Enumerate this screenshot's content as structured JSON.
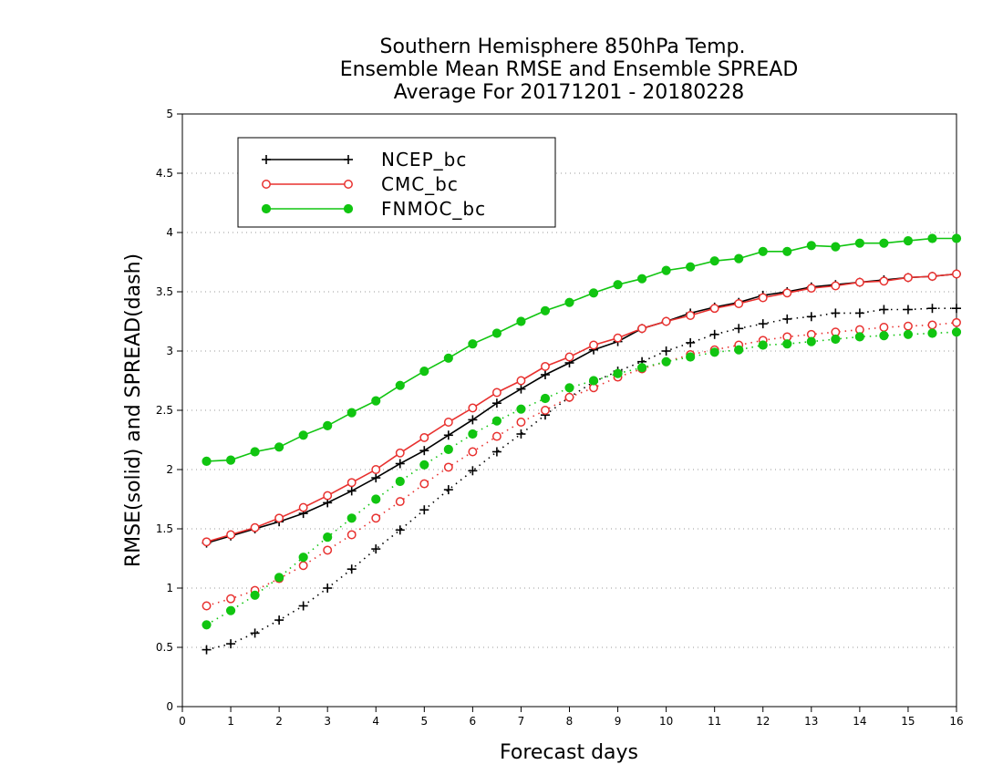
{
  "chart_data": {
    "type": "line",
    "title_lines": [
      "Southern Hemisphere 850hPa Temp.",
      "Ensemble Mean RMSE and Ensemble SPREAD",
      "Average For 20171201 - 20180228"
    ],
    "xlabel": "Forecast days",
    "ylabel": "RMSE(solid) and SPREAD(dash)",
    "xlim": [
      0,
      16
    ],
    "ylim": [
      0,
      5
    ],
    "xticks": [
      "0",
      "1",
      "2",
      "3",
      "4",
      "5",
      "6",
      "7",
      "8",
      "9",
      "10",
      "11",
      "12",
      "13",
      "14",
      "15",
      "16"
    ],
    "yticks": [
      "0",
      "0.5",
      "1",
      "1.5",
      "2",
      "2.5",
      "3",
      "3.5",
      "4",
      "4.5",
      "5"
    ],
    "grid": "dotted horizontal",
    "legend_position": "top-left",
    "x": [
      0.5,
      1,
      1.5,
      2,
      2.5,
      3,
      3.5,
      4,
      4.5,
      5,
      5.5,
      6,
      6.5,
      7,
      7.5,
      8,
      8.5,
      9,
      9.5,
      10,
      10.5,
      11,
      11.5,
      12,
      12.5,
      13,
      13.5,
      14,
      14.5,
      15,
      15.5,
      16
    ],
    "series": [
      {
        "name": "NCEP_bc",
        "color": "#000000",
        "marker": "plus",
        "rmse": [
          1.38,
          1.44,
          1.5,
          1.56,
          1.63,
          1.72,
          1.82,
          1.93,
          2.05,
          2.16,
          2.29,
          2.42,
          2.56,
          2.68,
          2.8,
          2.9,
          3.01,
          3.08,
          3.19,
          3.25,
          3.32,
          3.37,
          3.41,
          3.47,
          3.5,
          3.54,
          3.56,
          3.58,
          3.6,
          3.62,
          3.63,
          3.65
        ],
        "spread": [
          0.48,
          0.53,
          0.62,
          0.73,
          0.85,
          1.0,
          1.16,
          1.33,
          1.49,
          1.66,
          1.83,
          1.99,
          2.15,
          2.3,
          2.46,
          2.61,
          2.74,
          2.83,
          2.91,
          3.0,
          3.07,
          3.14,
          3.19,
          3.23,
          3.27,
          3.29,
          3.32,
          3.32,
          3.35,
          3.35,
          3.36,
          3.36
        ]
      },
      {
        "name": "CMC_bc",
        "color": "#e8312f",
        "marker": "open-circle",
        "rmse": [
          1.39,
          1.45,
          1.51,
          1.59,
          1.68,
          1.78,
          1.89,
          2.0,
          2.14,
          2.27,
          2.4,
          2.52,
          2.65,
          2.75,
          2.87,
          2.95,
          3.05,
          3.11,
          3.19,
          3.25,
          3.3,
          3.36,
          3.4,
          3.45,
          3.49,
          3.53,
          3.55,
          3.58,
          3.59,
          3.62,
          3.63,
          3.65
        ],
        "spread": [
          0.85,
          0.91,
          0.98,
          1.08,
          1.19,
          1.32,
          1.45,
          1.59,
          1.73,
          1.88,
          2.02,
          2.15,
          2.28,
          2.4,
          2.5,
          2.61,
          2.69,
          2.78,
          2.85,
          2.91,
          2.97,
          3.01,
          3.05,
          3.09,
          3.12,
          3.14,
          3.16,
          3.18,
          3.2,
          3.21,
          3.22,
          3.24
        ]
      },
      {
        "name": "FNMOC_bc",
        "color": "#11c511",
        "marker": "filled-circle",
        "rmse": [
          2.07,
          2.08,
          2.15,
          2.19,
          2.29,
          2.37,
          2.48,
          2.58,
          2.71,
          2.83,
          2.94,
          3.06,
          3.15,
          3.25,
          3.34,
          3.41,
          3.49,
          3.56,
          3.61,
          3.68,
          3.71,
          3.76,
          3.78,
          3.84,
          3.84,
          3.89,
          3.88,
          3.91,
          3.91,
          3.93,
          3.95,
          3.95
        ],
        "spread": [
          0.69,
          0.81,
          0.94,
          1.09,
          1.26,
          1.43,
          1.59,
          1.75,
          1.9,
          2.04,
          2.17,
          2.3,
          2.41,
          2.51,
          2.6,
          2.69,
          2.75,
          2.81,
          2.86,
          2.91,
          2.95,
          2.99,
          3.01,
          3.05,
          3.06,
          3.08,
          3.1,
          3.12,
          3.13,
          3.14,
          3.15,
          3.16
        ]
      }
    ]
  }
}
